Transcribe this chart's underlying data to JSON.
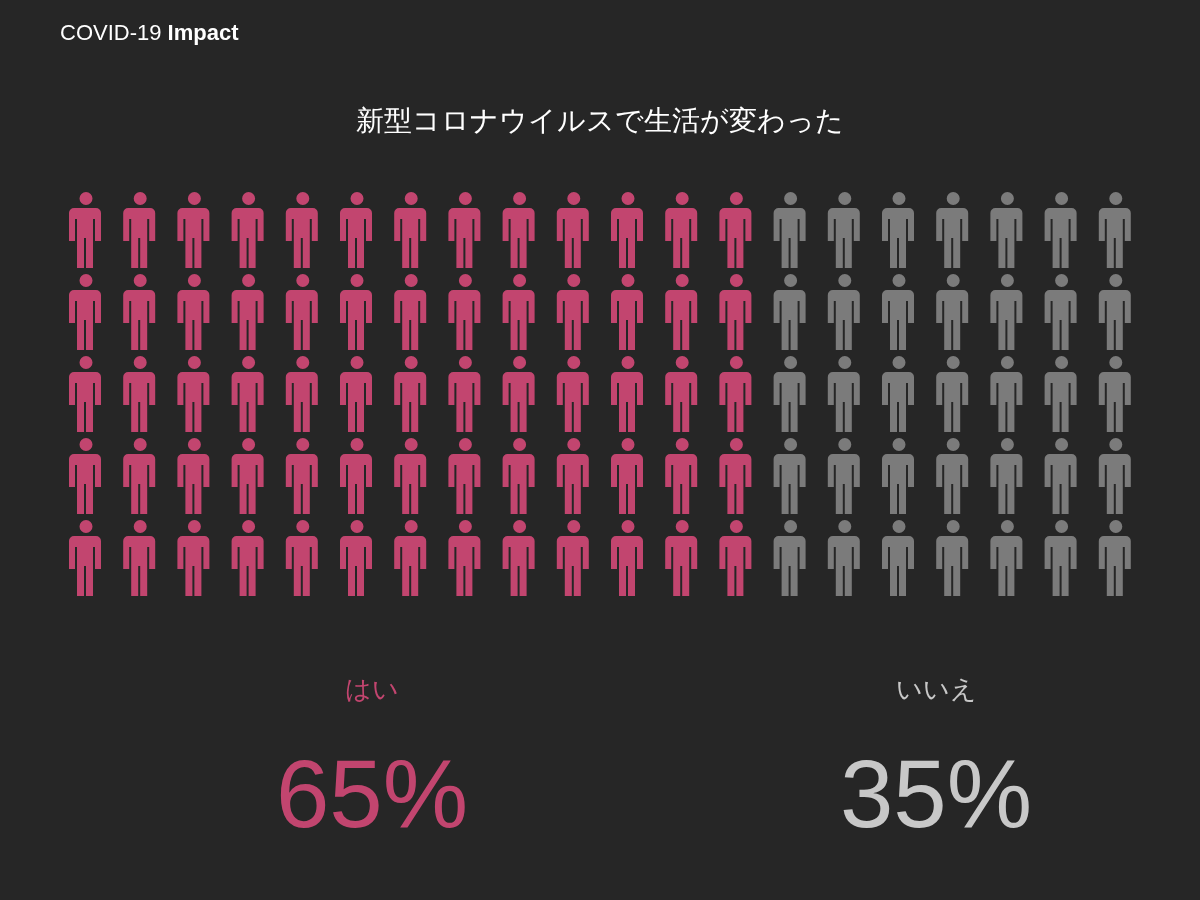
{
  "chart_data": {
    "type": "other",
    "title": "COVID-19 **Impact**",
    "subtitle": "新型コロナウイルスで生活が変わった",
    "categories": [
      "はい",
      "いいえ"
    ],
    "values": [
      65,
      35
    ],
    "colors": [
      "#c2456f",
      "#7b7b7b"
    ],
    "value_labels": [
      "65%",
      "35%"
    ]
  }
}
